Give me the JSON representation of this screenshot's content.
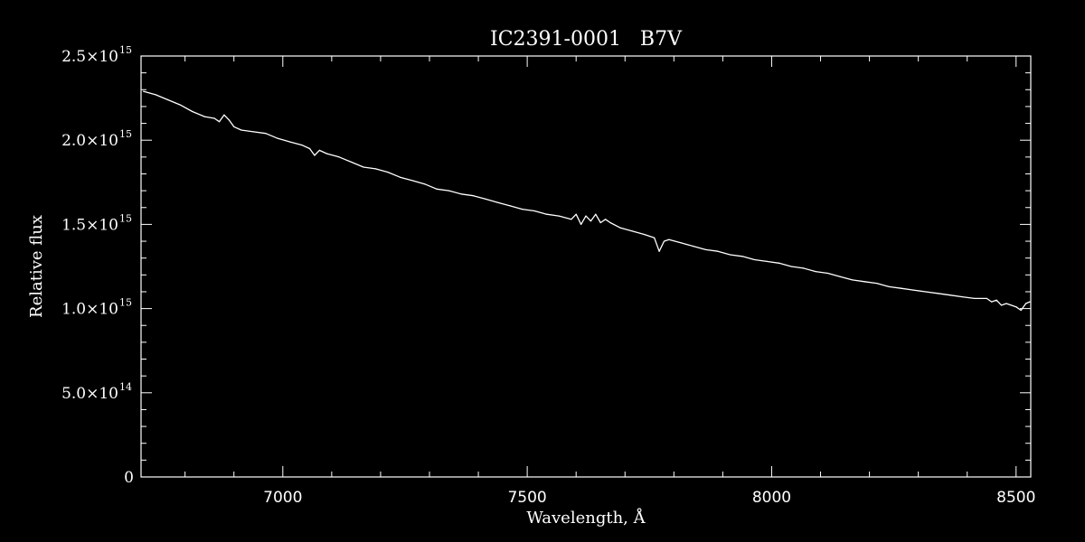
{
  "colors": {
    "background": "#000000",
    "foreground": "#ffffff"
  },
  "chart_data": {
    "type": "line",
    "title": "IC2391-0001   B7V",
    "xlabel": "Wavelength, Å",
    "ylabel": "Relative flux",
    "xlim": [
      6710,
      8530
    ],
    "ylim": [
      0,
      2500000000000000.0
    ],
    "grid": false,
    "x_ticks": [
      {
        "value": 7000,
        "label": "7000"
      },
      {
        "value": 7500,
        "label": "7500"
      },
      {
        "value": 8000,
        "label": "8000"
      },
      {
        "value": 8500,
        "label": "8500"
      }
    ],
    "y_ticks": [
      {
        "value": 0,
        "mantissa": "0",
        "exponent": ""
      },
      {
        "value": 500000000000000.0,
        "mantissa": "5.0×10",
        "exponent": "14"
      },
      {
        "value": 1000000000000000.0,
        "mantissa": "1.0×10",
        "exponent": "15"
      },
      {
        "value": 1500000000000000.0,
        "mantissa": "1.5×10",
        "exponent": "15"
      },
      {
        "value": 2000000000000000.0,
        "mantissa": "2.0×10",
        "exponent": "15"
      },
      {
        "value": 2500000000000000.0,
        "mantissa": "2.5×10",
        "exponent": "15"
      }
    ],
    "series": [
      {
        "x": [
          6715,
          6740,
          6765,
          6790,
          6815,
          6840,
          6860,
          6870,
          6880,
          6890,
          6900,
          6915,
          6940,
          6965,
          6990,
          7015,
          7040,
          7055,
          7065,
          7075,
          7090,
          7115,
          7140,
          7165,
          7190,
          7215,
          7240,
          7265,
          7290,
          7315,
          7340,
          7365,
          7390,
          7415,
          7440,
          7465,
          7490,
          7515,
          7540,
          7565,
          7590,
          7600,
          7610,
          7620,
          7630,
          7640,
          7650,
          7660,
          7670,
          7690,
          7715,
          7740,
          7760,
          7770,
          7780,
          7790,
          7815,
          7840,
          7865,
          7890,
          7915,
          7940,
          7965,
          7990,
          8015,
          8040,
          8065,
          8090,
          8115,
          8140,
          8165,
          8190,
          8215,
          8240,
          8265,
          8290,
          8315,
          8340,
          8365,
          8390,
          8415,
          8440,
          8450,
          8460,
          8470,
          8480,
          8490,
          8500,
          8510,
          8520,
          8528
        ],
        "y": [
          2290000000000000.0,
          2270000000000000.0,
          2240000000000000.0,
          2210000000000000.0,
          2170000000000000.0,
          2140000000000000.0,
          2130000000000000.0,
          2110000000000000.0,
          2150000000000000.0,
          2120000000000000.0,
          2080000000000000.0,
          2060000000000000.0,
          2050000000000000.0,
          2040000000000000.0,
          2010000000000000.0,
          1990000000000000.0,
          1970000000000000.0,
          1950000000000000.0,
          1910000000000000.0,
          1940000000000000.0,
          1920000000000000.0,
          1900000000000000.0,
          1870000000000000.0,
          1840000000000000.0,
          1830000000000000.0,
          1810000000000000.0,
          1780000000000000.0,
          1760000000000000.0,
          1740000000000000.0,
          1710000000000000.0,
          1700000000000000.0,
          1680000000000000.0,
          1670000000000000.0,
          1650000000000000.0,
          1630000000000000.0,
          1610000000000000.0,
          1590000000000000.0,
          1580000000000000.0,
          1560000000000000.0,
          1550000000000000.0,
          1530000000000000.0,
          1560000000000000.0,
          1500000000000000.0,
          1550000000000000.0,
          1520000000000000.0,
          1560000000000000.0,
          1510000000000000.0,
          1530000000000000.0,
          1510000000000000.0,
          1480000000000000.0,
          1460000000000000.0,
          1440000000000000.0,
          1420000000000000.0,
          1340000000000000.0,
          1400000000000000.0,
          1410000000000000.0,
          1390000000000000.0,
          1370000000000000.0,
          1350000000000000.0,
          1340000000000000.0,
          1320000000000000.0,
          1310000000000000.0,
          1290000000000000.0,
          1280000000000000.0,
          1270000000000000.0,
          1250000000000000.0,
          1240000000000000.0,
          1220000000000000.0,
          1210000000000000.0,
          1190000000000000.0,
          1170000000000000.0,
          1160000000000000.0,
          1150000000000000.0,
          1130000000000000.0,
          1120000000000000.0,
          1110000000000000.0,
          1100000000000000.0,
          1090000000000000.0,
          1080000000000000.0,
          1070000000000000.0,
          1060000000000000.0,
          1060000000000000.0,
          1040000000000000.0,
          1050000000000000.0,
          1020000000000000.0,
          1030000000000000.0,
          1020000000000000.0,
          1010000000000000.0,
          990000000000000.0,
          1030000000000000.0,
          1040000000000000.0
        ]
      }
    ]
  }
}
